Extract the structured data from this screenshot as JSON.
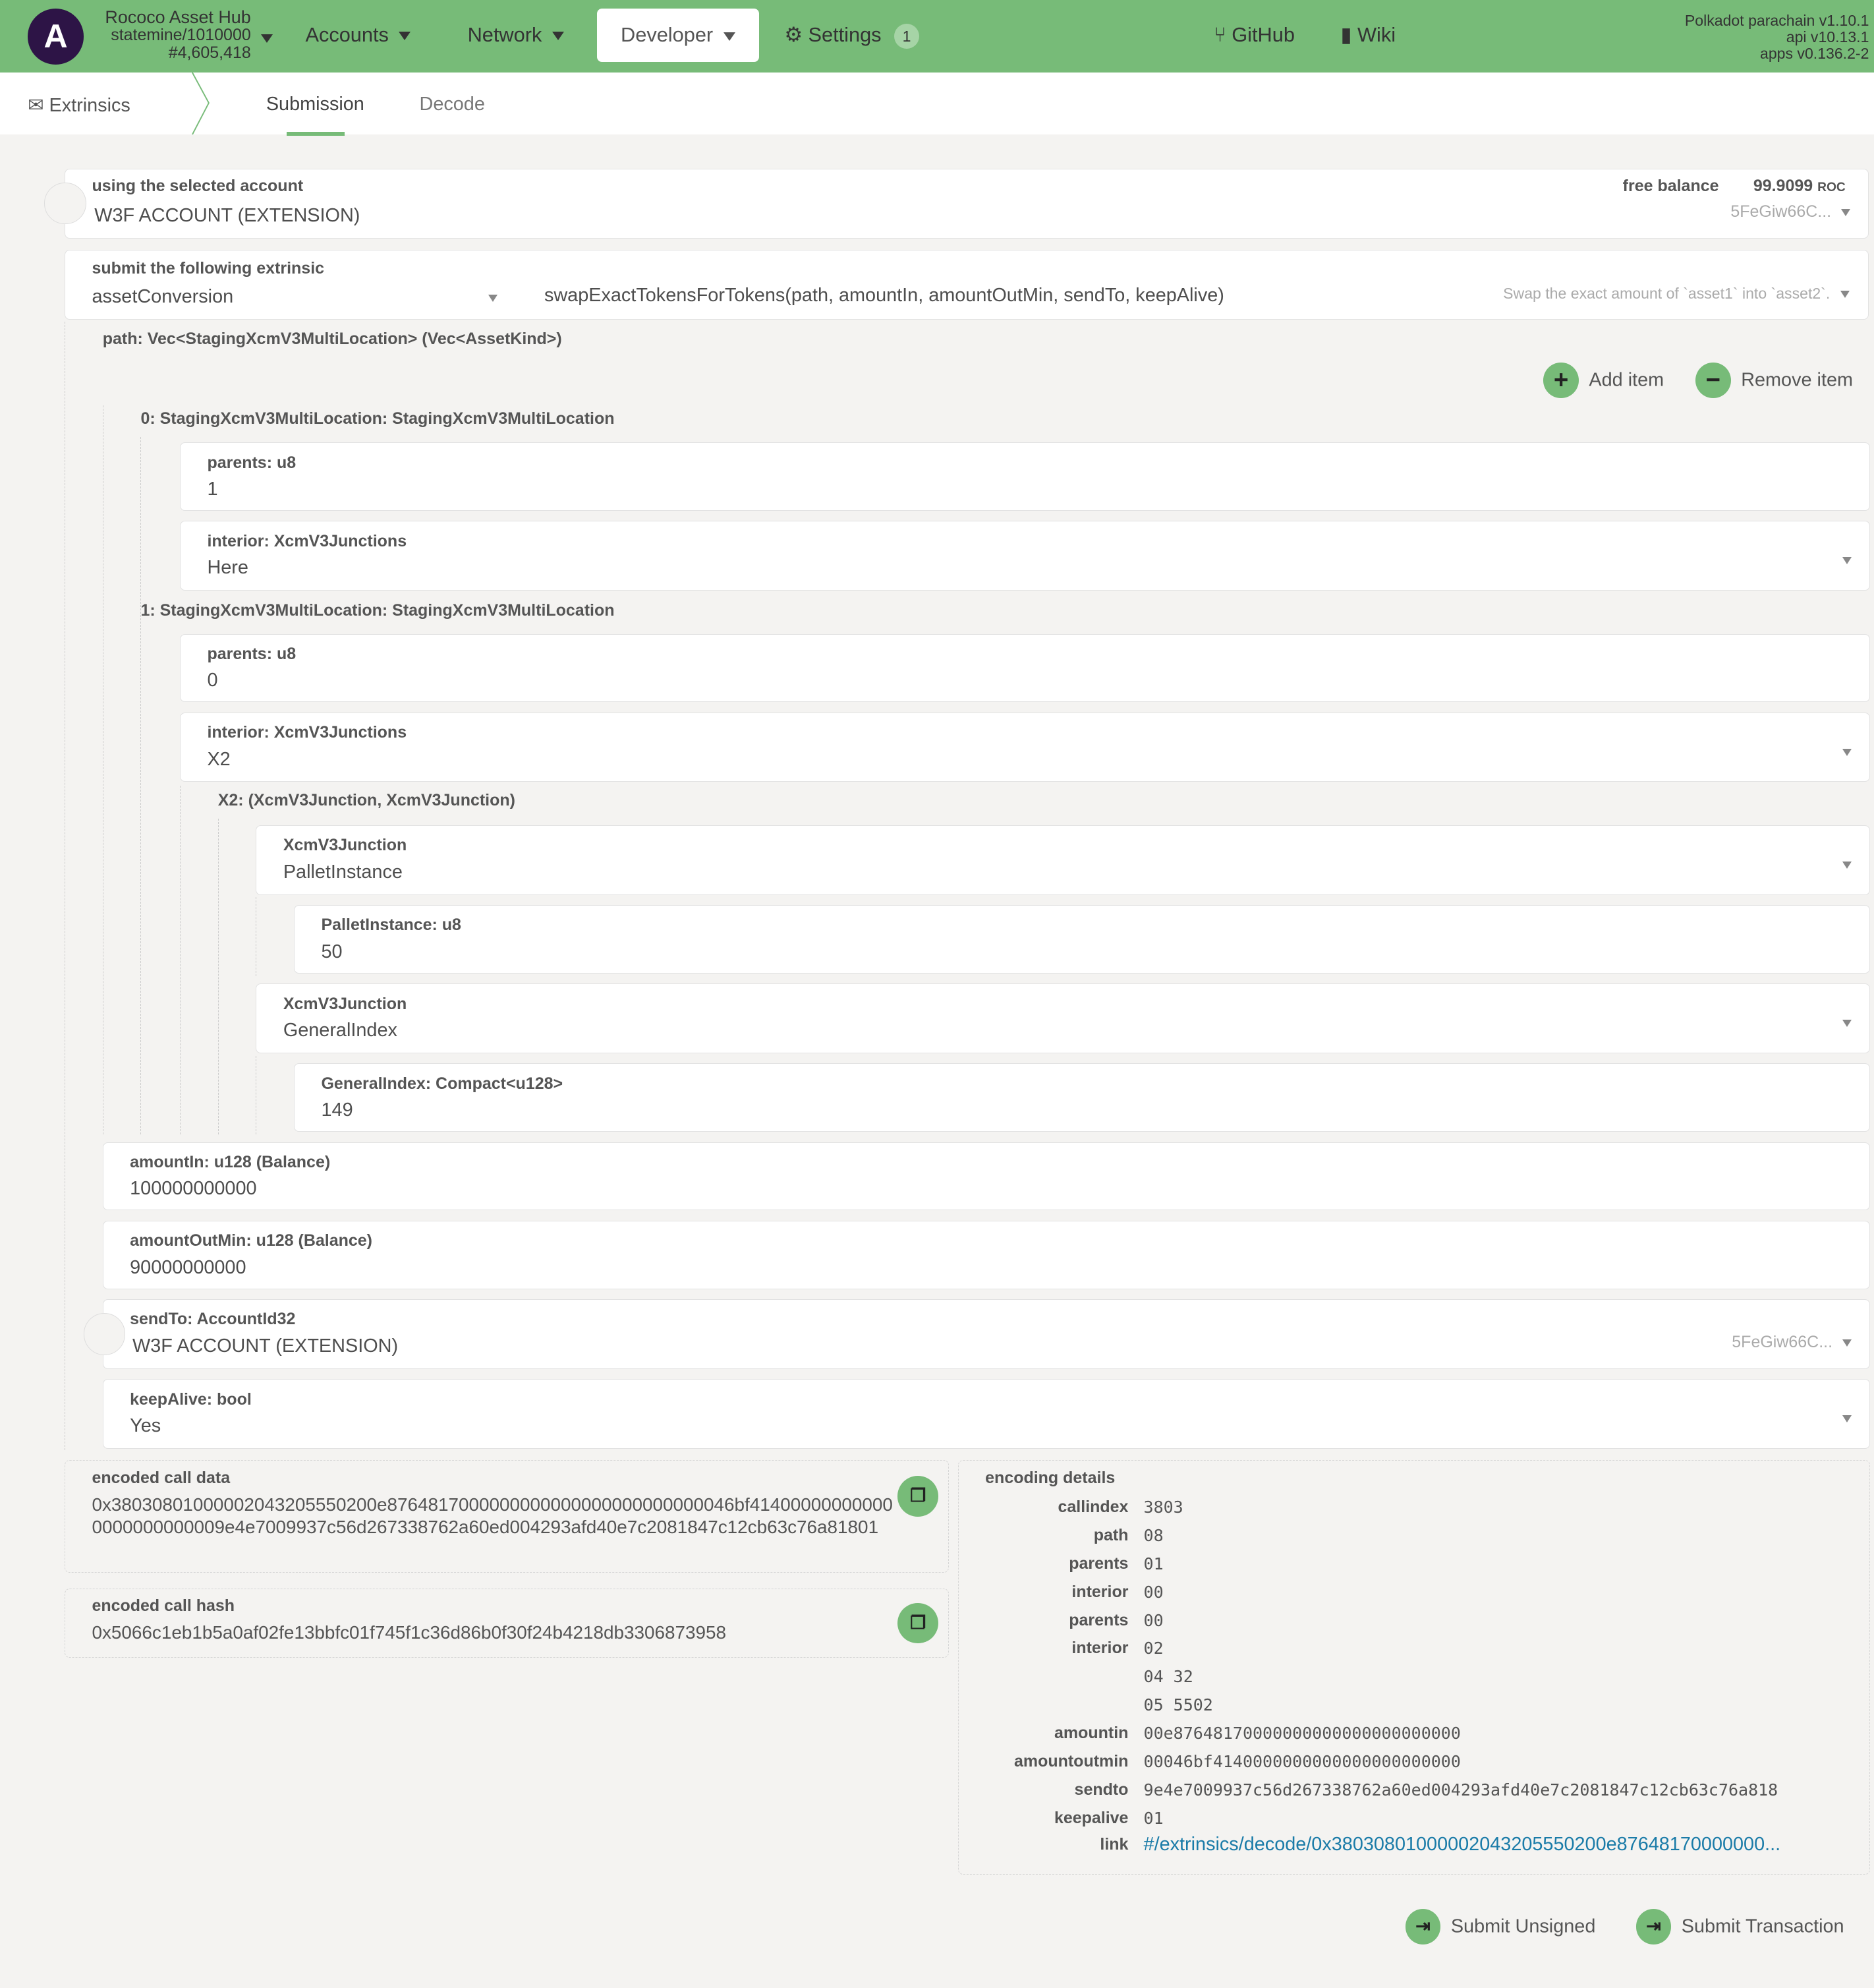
{
  "header": {
    "chain_name": "Rococo Asset Hub",
    "chain_spec": "statemine/1010000",
    "block": "#4,605,418",
    "nav": [
      {
        "label": "Accounts"
      },
      {
        "label": "Network"
      },
      {
        "label": "Developer"
      },
      {
        "label": "Settings",
        "badge": "1"
      }
    ],
    "links": [
      {
        "label": "GitHub",
        "icon": "git-branch-icon"
      },
      {
        "label": "Wiki",
        "icon": "book-icon"
      }
    ],
    "versions": [
      "Polkadot parachain v1.10.1",
      "api v10.13.1",
      "apps v0.136.2-2"
    ],
    "brand_color": "#77bb78"
  },
  "subnav": {
    "section": "Extrinsics",
    "tabs": [
      {
        "label": "Submission",
        "active": true
      },
      {
        "label": "Decode"
      }
    ]
  },
  "account": {
    "label": "using the selected account",
    "name": "W3F ACCOUNT (EXTENSION)",
    "balance_label": "free balance",
    "balance": "99.9099",
    "unit": "ROC",
    "address": "5FeGiw66C..."
  },
  "extrinsic": {
    "label": "submit the following extrinsic",
    "pallet": "assetConversion",
    "method": "swapExactTokensForTokens(path, amountIn, amountOutMin, sendTo, keepAlive)",
    "doc": "Swap the exact amount of `asset1` into `asset2`."
  },
  "path": {
    "label": "path: Vec<StagingXcmV3MultiLocation> (Vec<AssetKind>)",
    "add": "Add item",
    "remove": "Remove item",
    "item0": {
      "label": "0: StagingXcmV3MultiLocation: StagingXcmV3MultiLocation",
      "parents_label": "parents: u8",
      "parents": "1",
      "interior_label": "interior: XcmV3Junctions",
      "interior": "Here"
    },
    "item1": {
      "label": "1: StagingXcmV3MultiLocation: StagingXcmV3MultiLocation",
      "parents_label": "parents: u8",
      "parents": "0",
      "interior_label": "interior: XcmV3Junctions",
      "interior": "X2",
      "x2_label": "X2: (XcmV3Junction, XcmV3Junction)",
      "j0_label": "XcmV3Junction",
      "j0": "PalletInstance",
      "j0_sub_label": "PalletInstance: u8",
      "j0_sub": "50",
      "j1_label": "XcmV3Junction",
      "j1": "GeneralIndex",
      "j1_sub_label": "GeneralIndex: Compact<u128>",
      "j1_sub": "149"
    }
  },
  "params": {
    "amountIn_label": "amountIn: u128 (Balance)",
    "amountIn": "100000000000",
    "amountOutMin_label": "amountOutMin: u128 (Balance)",
    "amountOutMin": "90000000000",
    "sendTo_label": "sendTo: AccountId32",
    "sendTo": "W3F ACCOUNT (EXTENSION)",
    "sendTo_address": "5FeGiw66C...",
    "keepAlive_label": "keepAlive: bool",
    "keepAlive": "Yes"
  },
  "encoded": {
    "data_label": "encoded call data",
    "data": "0x3803080100000204320555020 0e8764817000000000000000000000000046bf414000000000000000000000009e4e7009937c56d267338762a60ed004293afd40e7c2081847c12cb63c76a81801",
    "hash_label": "encoded call hash",
    "hash": "0x5066c1eb1b5a0af02fe13bbfc01f745f1c36d86b0f30f24b4218db3306873958"
  },
  "details": {
    "label": "encoding details",
    "rows": [
      {
        "k": "callindex",
        "v": "3803"
      },
      {
        "k": "path",
        "v": "08"
      },
      {
        "k": "parents",
        "v": "01"
      },
      {
        "k": "interior",
        "v": "00"
      },
      {
        "k": "parents",
        "v": "00"
      },
      {
        "k": "interior",
        "v": "02"
      },
      {
        "k": "",
        "v": "04 32"
      },
      {
        "k": "",
        "v": "05 5502"
      },
      {
        "k": "amountin",
        "v": "00e87648170000000000000000000000"
      },
      {
        "k": "amountoutmin",
        "v": "00046bf4140000000000000000000000"
      },
      {
        "k": "sendto",
        "v": "9e4e7009937c56d267338762a60ed004293afd40e7c2081847c12cb63c76a818"
      },
      {
        "k": "keepalive",
        "v": "01"
      }
    ],
    "link_label": "link",
    "link": "#/extrinsics/decode/0x380308010000020432055502 00e87648170000000..."
  },
  "actions": {
    "unsigned": "Submit Unsigned",
    "signed": "Submit Transaction"
  }
}
